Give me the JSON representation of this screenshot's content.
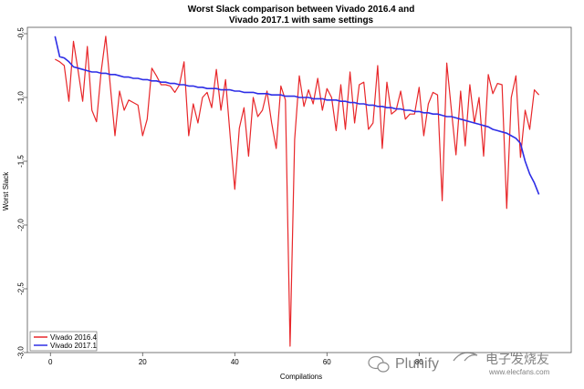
{
  "chart_data": {
    "type": "line",
    "title_line1": "Worst Slack comparison between Vivado 2016.4 and",
    "title_line2": "Vivado 2017.1 with same settings",
    "xlabel": "Compilations",
    "ylabel": "Worst Slack",
    "xlim": [
      1,
      105
    ],
    "ylim": [
      -3.0,
      -0.45
    ],
    "x_ticks": [
      0,
      20,
      40,
      60,
      80,
      100
    ],
    "x_tick_labels": [
      "0",
      "20",
      "40",
      "60",
      "80",
      ""
    ],
    "y_ticks": [
      -0.5,
      -1.0,
      -1.5,
      -2.0,
      -2.5,
      -3.0
    ],
    "y_tick_labels": [
      "-0.5",
      "-1.0",
      "-1.5",
      "-2.0",
      "-2.5",
      "-3.0"
    ],
    "legend_position": "bottom-left",
    "series": [
      {
        "name": "Vivado 2016.4",
        "color": "#e8272a",
        "values": [
          -0.7,
          -0.72,
          -0.75,
          -1.03,
          -0.56,
          -0.79,
          -1.03,
          -0.6,
          -1.1,
          -1.19,
          -0.8,
          -0.52,
          -0.91,
          -1.3,
          -0.95,
          -1.1,
          -1.02,
          -1.04,
          -1.06,
          -1.3,
          -1.17,
          -0.77,
          -0.83,
          -0.9,
          -0.9,
          -0.91,
          -0.96,
          -0.9,
          -0.72,
          -1.3,
          -1.05,
          -1.2,
          -1.0,
          -0.96,
          -1.08,
          -0.78,
          -1.1,
          -0.86,
          -1.3,
          -1.72,
          -1.24,
          -1.08,
          -1.46,
          -1.0,
          -1.15,
          -1.1,
          -0.95,
          -1.2,
          -1.4,
          -0.91,
          -1.02,
          -2.95,
          -1.33,
          -0.83,
          -1.07,
          -0.94,
          -1.05,
          -0.85,
          -1.1,
          -0.93,
          -1.0,
          -1.26,
          -0.9,
          -1.25,
          -0.8,
          -1.2,
          -0.9,
          -0.88,
          -1.25,
          -1.2,
          -0.75,
          -1.4,
          -0.88,
          -1.13,
          -1.1,
          -0.95,
          -1.17,
          -1.13,
          -1.13,
          -0.92,
          -1.3,
          -1.05,
          -0.96,
          -0.98,
          -1.81,
          -0.73,
          -1.1,
          -1.45,
          -0.95,
          -1.38,
          -0.9,
          -1.2,
          -1.0,
          -1.46,
          -0.82,
          -0.97,
          -0.89,
          -0.9,
          -1.87,
          -1.0,
          -0.83,
          -1.47,
          -1.1,
          -1.25,
          -0.94,
          -0.98
        ]
      },
      {
        "name": "Vivado 2017.1",
        "color": "#2e2ee6",
        "values": [
          -0.52,
          -0.68,
          -0.69,
          -0.72,
          -0.76,
          -0.77,
          -0.78,
          -0.79,
          -0.8,
          -0.8,
          -0.81,
          -0.81,
          -0.82,
          -0.82,
          -0.83,
          -0.84,
          -0.84,
          -0.85,
          -0.85,
          -0.86,
          -0.86,
          -0.87,
          -0.87,
          -0.88,
          -0.88,
          -0.89,
          -0.89,
          -0.9,
          -0.9,
          -0.91,
          -0.91,
          -0.92,
          -0.92,
          -0.93,
          -0.93,
          -0.93,
          -0.94,
          -0.94,
          -0.94,
          -0.95,
          -0.95,
          -0.96,
          -0.96,
          -0.96,
          -0.97,
          -0.97,
          -0.97,
          -0.98,
          -0.98,
          -0.98,
          -0.99,
          -0.99,
          -0.99,
          -1.0,
          -1.0,
          -1.0,
          -1.01,
          -1.01,
          -1.01,
          -1.02,
          -1.02,
          -1.02,
          -1.03,
          -1.03,
          -1.04,
          -1.04,
          -1.05,
          -1.05,
          -1.06,
          -1.06,
          -1.07,
          -1.07,
          -1.08,
          -1.08,
          -1.09,
          -1.09,
          -1.1,
          -1.1,
          -1.11,
          -1.11,
          -1.12,
          -1.12,
          -1.13,
          -1.13,
          -1.14,
          -1.15,
          -1.15,
          -1.16,
          -1.17,
          -1.18,
          -1.19,
          -1.2,
          -1.21,
          -1.22,
          -1.23,
          -1.25,
          -1.26,
          -1.27,
          -1.28,
          -1.3,
          -1.32,
          -1.36,
          -1.5,
          -1.6,
          -1.67,
          -1.76
        ]
      }
    ]
  },
  "watermark": {
    "text_latin": "Plunify",
    "text_cjk": "电子发烧友",
    "url": "www.elecfans.com"
  }
}
